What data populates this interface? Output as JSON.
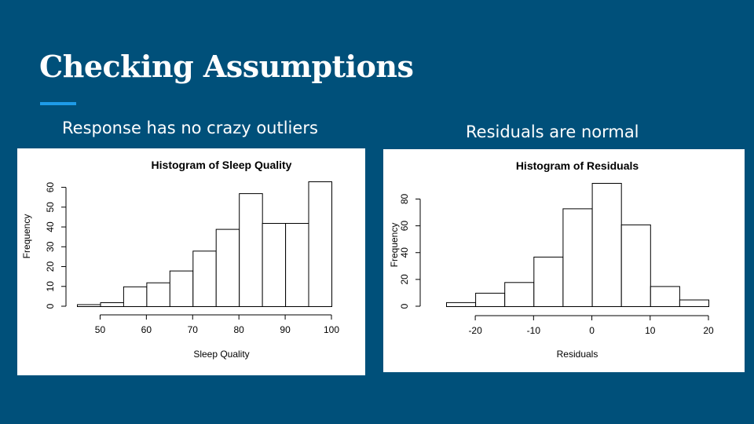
{
  "slide": {
    "title": "Checking Assumptions",
    "accent_color": "#1e9be8",
    "background_color": "#00507a"
  },
  "captions": {
    "left": "Response has no crazy outliers",
    "right": "Residuals are normal"
  },
  "chart_data": [
    {
      "type": "bar",
      "subtype": "histogram",
      "title": "Histogram of Sleep Quality",
      "xlabel": "Sleep Quality",
      "ylabel": "Frequency",
      "bin_edges": [
        45,
        50,
        55,
        60,
        65,
        70,
        75,
        80,
        85,
        90,
        95,
        100
      ],
      "values": [
        1,
        2,
        10,
        12,
        18,
        28,
        39,
        57,
        42,
        42,
        63
      ],
      "xticks": [
        50,
        60,
        70,
        80,
        90,
        100
      ],
      "yticks": [
        0,
        10,
        20,
        30,
        40,
        50,
        60
      ],
      "xlim": [
        45,
        100
      ],
      "ylim": [
        0,
        63
      ],
      "grid": false
    },
    {
      "type": "bar",
      "subtype": "histogram",
      "title": "Histogram of Residuals",
      "xlabel": "Residuals",
      "ylabel": "Frequency",
      "bin_edges": [
        -25,
        -20,
        -15,
        -10,
        -5,
        0,
        5,
        10,
        15,
        20
      ],
      "values": [
        3,
        10,
        18,
        37,
        73,
        92,
        61,
        15,
        5
      ],
      "xticks": [
        -20,
        -10,
        0,
        10,
        20
      ],
      "yticks": [
        0,
        20,
        40,
        60,
        80
      ],
      "xlim": [
        -25,
        20
      ],
      "ylim": [
        0,
        92
      ],
      "grid": false
    }
  ]
}
